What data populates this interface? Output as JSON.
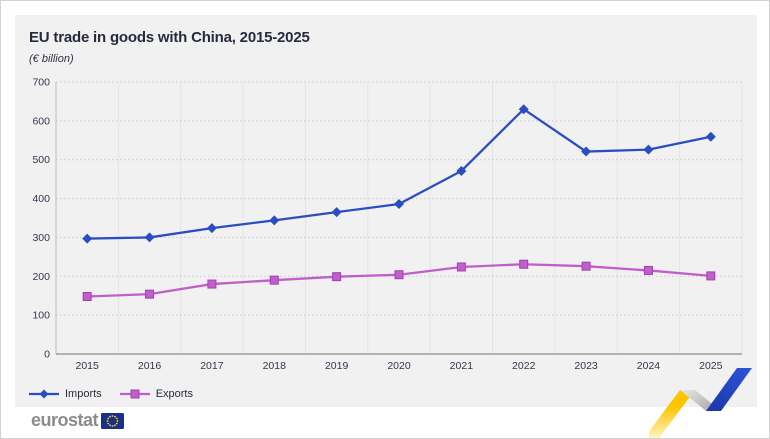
{
  "page": {
    "background": "#ffffff",
    "card_background": "#f1f1f2",
    "border_color": "#d2d2d2"
  },
  "header": {
    "title": "EU trade in goods with China, 2015-2025",
    "subtitle": "(€ billion)"
  },
  "chart_data": {
    "type": "line",
    "title": "EU trade in goods with China, 2015-2025",
    "subtitle": "(€ billion)",
    "categories": [
      "2015",
      "2016",
      "2017",
      "2018",
      "2019",
      "2020",
      "2021",
      "2022",
      "2023",
      "2024",
      "2025"
    ],
    "series": [
      {
        "name": "Imports",
        "marker": "diamond",
        "color": "#2a4ec1",
        "values": [
          297,
          300,
          324,
          344,
          365,
          386,
          471,
          630,
          521,
          526,
          559
        ]
      },
      {
        "name": "Exports",
        "marker": "square",
        "color": "#c05fc9",
        "marker_border": "#a23fb2",
        "values": [
          148,
          154,
          180,
          190,
          199,
          204,
          224,
          231,
          226,
          215,
          201
        ]
      }
    ],
    "ylim": [
      0,
      700
    ],
    "ytick_step": 100,
    "xlabel": "",
    "ylabel": "",
    "grid": {
      "horizontal": "dotted",
      "vertical": "solid"
    },
    "legend_position": "bottom-left",
    "colors": {
      "h_gridline": "#c9c9c9",
      "v_gridline": "#e4e4e5",
      "axis": "#a8a8a8",
      "tick_text": "#33374a"
    }
  },
  "branding": {
    "logo_text": "eurostat",
    "flag_bg": "#1a2f86",
    "star_color": "#ffd617"
  },
  "decoration": {
    "zigzag_yellow": "#fdc500",
    "zigzag_gray": "#bfbfbf",
    "zigzag_blue": "#2348c4"
  }
}
